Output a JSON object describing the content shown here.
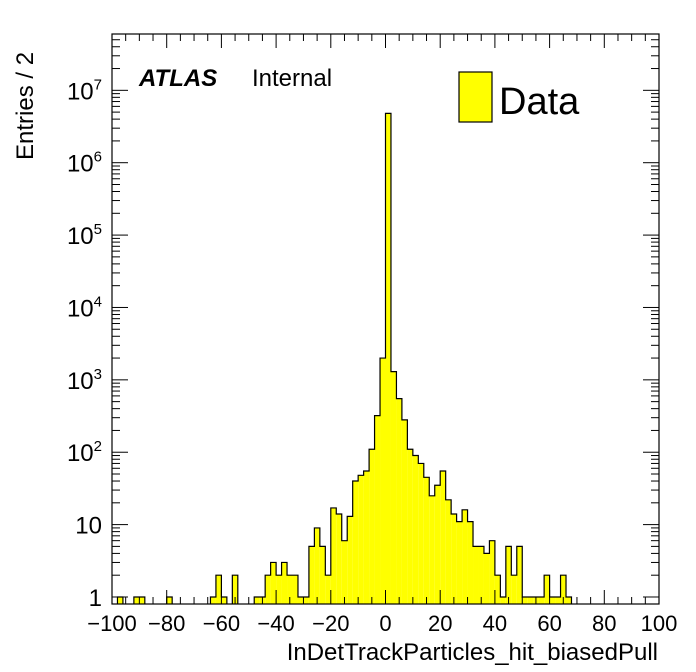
{
  "chart_data": {
    "type": "bar",
    "title": "",
    "xlabel": "InDetTrackParticles_hit_biasedPull",
    "ylabel": "Entries / 2",
    "xlim": [
      -100,
      100
    ],
    "ylim": [
      0.8,
      60000000
    ],
    "yscale": "log",
    "bin_width": 2,
    "x_ticks": [
      -100,
      -80,
      -60,
      -40,
      -20,
      0,
      20,
      40,
      60,
      80,
      100
    ],
    "x_tick_labels": [
      "−100",
      "−80",
      "−60",
      "−40",
      "−20",
      "0",
      "20",
      "40",
      "60",
      "80",
      "100"
    ],
    "y_ticks": [
      1,
      10,
      100,
      1000,
      10000,
      100000,
      1000000,
      10000000
    ],
    "y_tick_labels": [
      {
        "base": "1",
        "exp": ""
      },
      {
        "base": "10",
        "exp": ""
      },
      {
        "base": "10",
        "exp": "2"
      },
      {
        "base": "10",
        "exp": "3"
      },
      {
        "base": "10",
        "exp": "4"
      },
      {
        "base": "10",
        "exp": "5"
      },
      {
        "base": "10",
        "exp": "6"
      },
      {
        "base": "10",
        "exp": "7"
      }
    ],
    "series": [
      {
        "name": "Data",
        "color": "#ffff00",
        "bins": [
          [
            -98,
            1
          ],
          [
            -92,
            1
          ],
          [
            -90,
            1
          ],
          [
            -80,
            1
          ],
          [
            -64,
            1
          ],
          [
            -62,
            2
          ],
          [
            -60,
            1
          ],
          [
            -56,
            2
          ],
          [
            -48,
            1
          ],
          [
            -46,
            1
          ],
          [
            -44,
            2
          ],
          [
            -42,
            3
          ],
          [
            -40,
            2
          ],
          [
            -38,
            3
          ],
          [
            -36,
            2
          ],
          [
            -34,
            2
          ],
          [
            -32,
            1
          ],
          [
            -30,
            1
          ],
          [
            -28,
            5
          ],
          [
            -26,
            9
          ],
          [
            -24,
            5
          ],
          [
            -22,
            2
          ],
          [
            -20,
            17
          ],
          [
            -18,
            14
          ],
          [
            -16,
            6
          ],
          [
            -14,
            13
          ],
          [
            -12,
            40
          ],
          [
            -10,
            48
          ],
          [
            -8,
            55
          ],
          [
            -6,
            110
          ],
          [
            -4,
            320
          ],
          [
            -2,
            2000
          ],
          [
            0,
            4800000
          ],
          [
            2,
            1300
          ],
          [
            4,
            550
          ],
          [
            6,
            280
          ],
          [
            8,
            110
          ],
          [
            10,
            90
          ],
          [
            12,
            70
          ],
          [
            14,
            45
          ],
          [
            16,
            25
          ],
          [
            18,
            35
          ],
          [
            20,
            55
          ],
          [
            22,
            22
          ],
          [
            24,
            14
          ],
          [
            26,
            11
          ],
          [
            28,
            16
          ],
          [
            30,
            11
          ],
          [
            32,
            5
          ],
          [
            34,
            5
          ],
          [
            36,
            4
          ],
          [
            38,
            6
          ],
          [
            40,
            2
          ],
          [
            42,
            1
          ],
          [
            44,
            5
          ],
          [
            46,
            2
          ],
          [
            48,
            5
          ],
          [
            50,
            1
          ],
          [
            52,
            1
          ],
          [
            54,
            1
          ],
          [
            56,
            1
          ],
          [
            58,
            2
          ],
          [
            60,
            1
          ],
          [
            62,
            1
          ],
          [
            64,
            2
          ],
          [
            66,
            1
          ]
        ]
      }
    ],
    "annotations": [
      {
        "text": "ATLAS",
        "style": "bold-italic"
      },
      {
        "text": "Internal",
        "style": "normal"
      }
    ],
    "legend": {
      "position": "top-right",
      "entries": [
        "Data"
      ]
    },
    "grid": false
  }
}
